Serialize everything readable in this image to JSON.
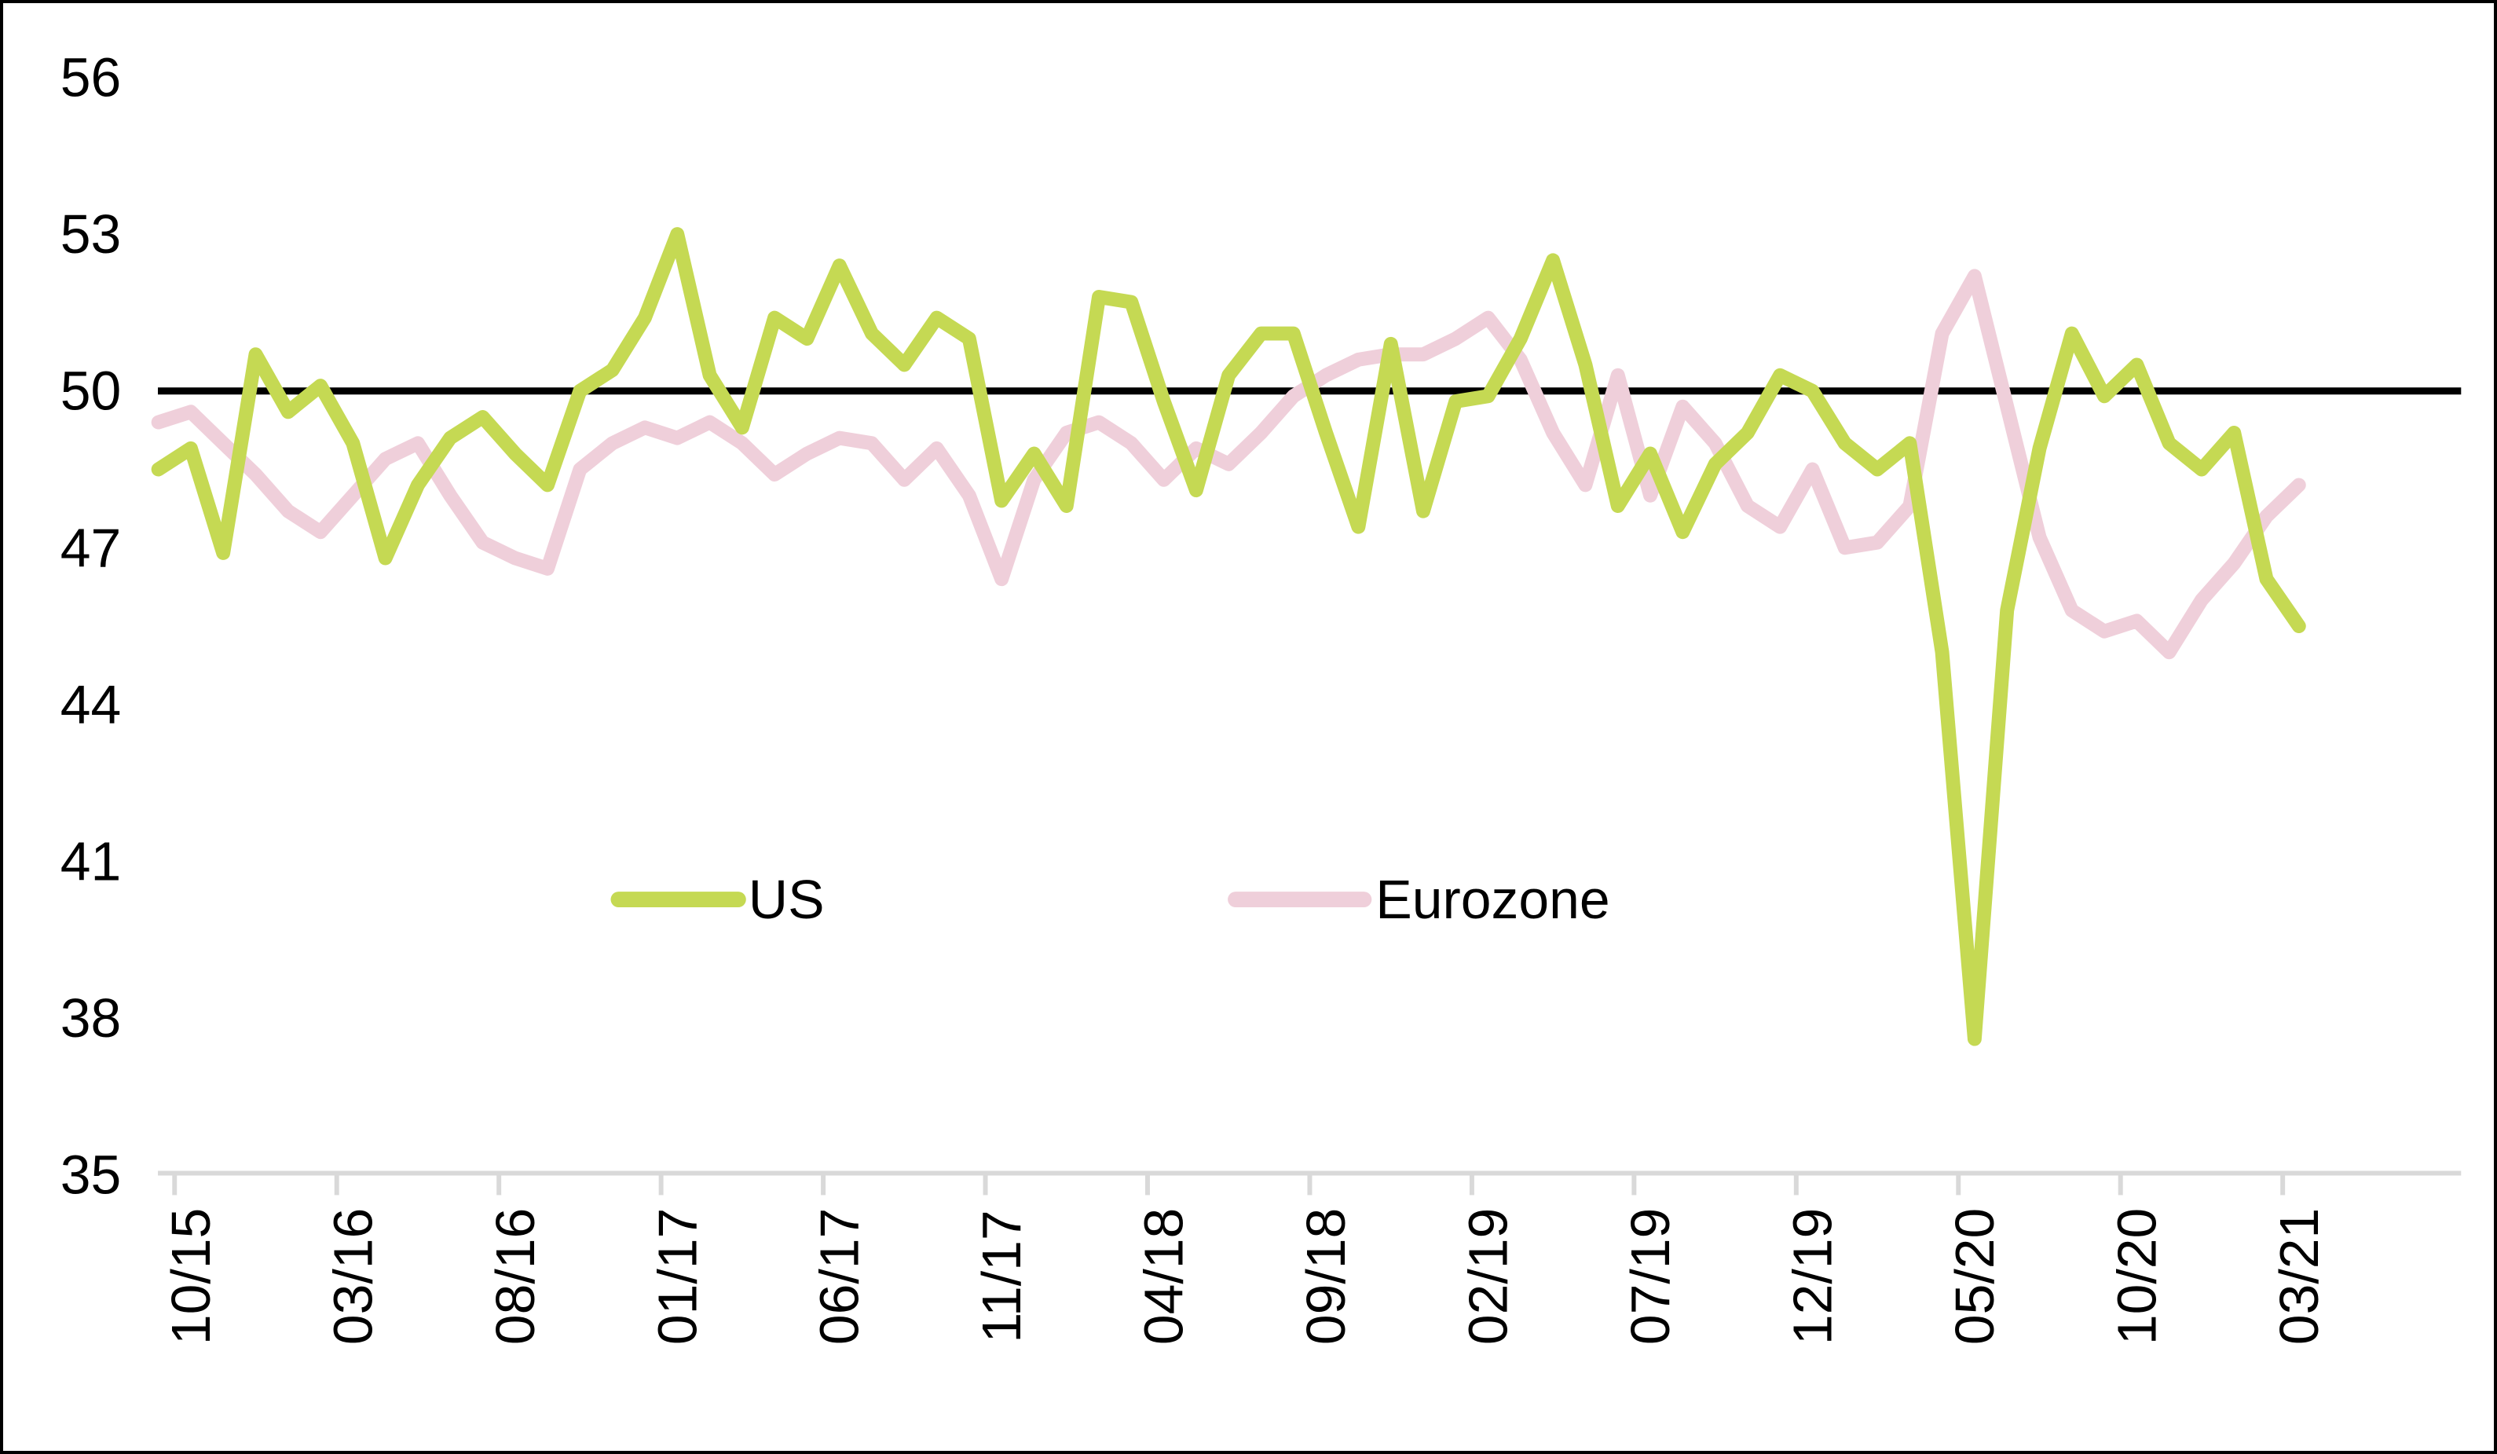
{
  "chart_data": {
    "type": "line",
    "title": "",
    "xlabel": "",
    "ylabel": "",
    "ylim": [
      35,
      56
    ],
    "y_ticks": [
      56,
      53,
      50,
      47,
      44,
      41,
      38,
      35
    ],
    "reference_line": 50,
    "grid": "off",
    "legend_position": "center-inside",
    "categories": [
      "09/15",
      "10/15",
      "11/15",
      "12/15",
      "01/16",
      "02/16",
      "03/16",
      "04/16",
      "05/16",
      "06/16",
      "07/16",
      "08/16",
      "09/16",
      "10/16",
      "11/16",
      "12/16",
      "01/17",
      "02/17",
      "03/17",
      "04/17",
      "05/17",
      "06/17",
      "07/17",
      "08/17",
      "09/17",
      "10/17",
      "11/17",
      "12/17",
      "01/18",
      "02/18",
      "03/18",
      "04/18",
      "05/18",
      "06/18",
      "07/18",
      "08/18",
      "09/18",
      "10/18",
      "11/18",
      "12/18",
      "01/19",
      "02/19",
      "03/19",
      "04/19",
      "05/19",
      "06/19",
      "07/19",
      "08/19",
      "09/19",
      "10/19",
      "11/19",
      "12/19",
      "01/20",
      "02/20",
      "03/20",
      "04/20",
      "05/20",
      "06/20",
      "07/20",
      "08/20",
      "09/20",
      "10/20",
      "11/20",
      "12/20",
      "01/21",
      "02/21",
      "03/21"
    ],
    "x_tick_label_indices": [
      1,
      6,
      11,
      16,
      21,
      26,
      31,
      36,
      41,
      46,
      51,
      56,
      61,
      66
    ],
    "x_tick_labels": [
      "10/15",
      "03/16",
      "08/16",
      "01/17",
      "06/17",
      "11/17",
      "04/18",
      "09/18",
      "02/19",
      "07/19",
      "12/19",
      "05/20",
      "10/20",
      "03/21"
    ],
    "series": [
      {
        "name": "US",
        "color": "#c5d953",
        "values": [
          48.5,
          48.9,
          46.9,
          50.7,
          49.6,
          50.1,
          49.0,
          46.8,
          48.2,
          49.1,
          49.5,
          48.8,
          48.2,
          50.0,
          50.4,
          51.4,
          53.0,
          50.3,
          49.3,
          51.4,
          51.0,
          52.4,
          51.1,
          50.5,
          51.4,
          51.0,
          47.9,
          48.8,
          47.8,
          51.8,
          51.7,
          49.8,
          48.1,
          50.3,
          51.1,
          51.1,
          49.2,
          47.4,
          50.9,
          47.7,
          49.8,
          49.9,
          51.0,
          52.5,
          50.5,
          47.8,
          48.8,
          47.3,
          48.6,
          49.2,
          50.3,
          50.0,
          49.0,
          48.5,
          49.0,
          45.0,
          37.6,
          45.8,
          48.9,
          51.1,
          49.9,
          50.5,
          49.0,
          48.5,
          49.2,
          46.4,
          45.5
        ]
      },
      {
        "name": "Eurozone",
        "color": "#efcfda",
        "values": [
          49.4,
          49.6,
          49.0,
          48.4,
          47.7,
          47.3,
          48.0,
          48.7,
          49.0,
          48.0,
          47.1,
          46.8,
          46.6,
          48.5,
          49.0,
          49.3,
          49.1,
          49.4,
          49.0,
          48.4,
          48.8,
          49.1,
          49.0,
          48.3,
          48.9,
          48.0,
          46.4,
          48.3,
          49.2,
          49.4,
          49.0,
          48.3,
          48.9,
          48.6,
          49.2,
          49.9,
          50.3,
          50.6,
          50.7,
          50.7,
          51.0,
          51.4,
          50.6,
          49.2,
          48.2,
          50.3,
          48.0,
          49.7,
          49.0,
          47.8,
          47.4,
          48.5,
          47.0,
          47.1,
          47.8,
          51.1,
          52.2,
          49.7,
          47.2,
          45.8,
          45.4,
          45.6,
          45.0,
          46.0,
          46.7,
          47.6,
          48.2
        ]
      }
    ],
    "colors": {
      "reference_line": "#000000",
      "axis_line": "#d9d9d9",
      "text": "#000000",
      "background": "#ffffff"
    }
  }
}
